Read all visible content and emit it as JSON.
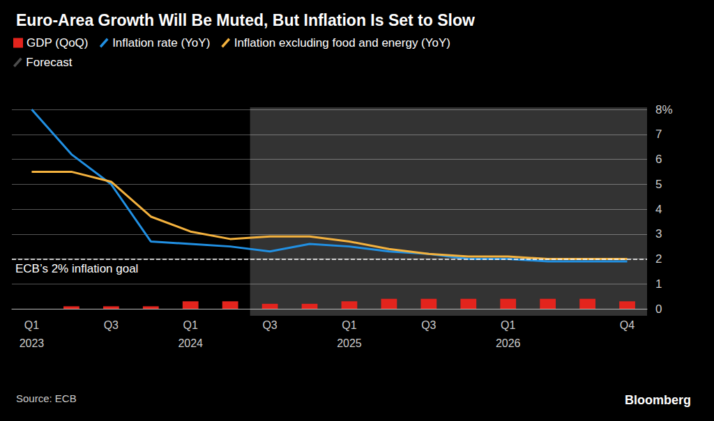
{
  "chart_data": {
    "type": "line",
    "title": "Euro-Area Growth Will Be Muted, But Inflation Is Set to Slow",
    "categories": [
      "Q1\n2023",
      null,
      "Q3",
      null,
      "Q1\n2024",
      null,
      "Q3",
      null,
      "Q1\n2025",
      null,
      "Q3",
      null,
      "Q1\n2026",
      null,
      null,
      "Q4"
    ],
    "series": [
      {
        "name": "GDP (QoQ)",
        "type": "bar",
        "color": "#e3241d",
        "values": [
          0.0,
          0.1,
          0.1,
          0.1,
          0.3,
          0.3,
          0.2,
          0.2,
          0.3,
          0.4,
          0.4,
          0.4,
          0.4,
          0.4,
          0.4,
          0.3
        ]
      },
      {
        "name": "Inflation rate (YoY)",
        "type": "line",
        "color": "#2190e3",
        "values": [
          8.0,
          6.2,
          5.0,
          2.7,
          2.6,
          2.5,
          2.3,
          2.6,
          2.5,
          2.3,
          2.2,
          2.0,
          2.0,
          1.9,
          1.9,
          1.9
        ]
      },
      {
        "name": "Inflation excluding food and energy (YoY)",
        "type": "line",
        "color": "#f4b23e",
        "values": [
          5.5,
          5.5,
          5.1,
          3.7,
          3.1,
          2.8,
          2.9,
          2.9,
          2.7,
          2.4,
          2.2,
          2.1,
          2.1,
          2.0,
          2.0,
          2.0
        ]
      }
    ],
    "ylim": [
      0,
      8
    ],
    "yticks": [
      0,
      1,
      2,
      3,
      4,
      5,
      6,
      7,
      {
        "value": 8,
        "label": "8%"
      }
    ],
    "grid": true,
    "legend": "top",
    "reference_line": {
      "value": 2,
      "label": "ECB’s 2% inflation goal"
    },
    "forecast": {
      "label": "Forecast",
      "start": 6
    },
    "source": "Source: ECB",
    "credit": "Bloomberg"
  }
}
